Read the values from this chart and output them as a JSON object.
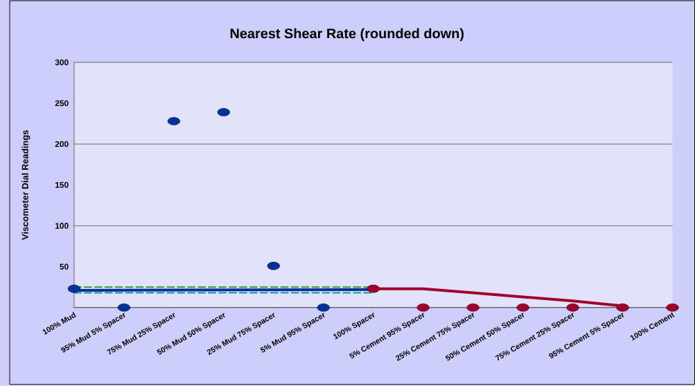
{
  "chart_data": {
    "type": "line",
    "title": "Nearest Shear Rate (rounded down)",
    "ylabel": "Viscometer Dial Readings",
    "categories": [
      "100% Mud",
      "95% Mud  5% Spacer",
      "75% Mud  25% Spacer",
      "50% Mud  50% Spacer",
      "25% Mud  75% Spacer",
      "5% Mud  95% Spacer",
      "100% Spacer",
      "5% Cement  95% Spacer",
      "25% Cement  75% Spacer",
      "50% Cement  50% Spacer",
      "75% Cement  25% Spacer",
      "95% Cement  5% Spacer",
      "100% Cement"
    ],
    "series": [
      {
        "type": "scatter",
        "color": "#003399",
        "marker": "circle",
        "values": [
          23,
          0,
          228,
          239,
          51,
          0,
          null,
          null,
          null,
          null,
          null,
          null,
          null
        ]
      },
      {
        "type": "scatter",
        "color": "#a0002a",
        "marker": "circle",
        "values": [
          null,
          null,
          null,
          null,
          null,
          null,
          23,
          0,
          0,
          0,
          0,
          0,
          0
        ]
      },
      {
        "color": "#339933",
        "line_style": "dashed",
        "marker": "none",
        "values": [
          25,
          null,
          null,
          null,
          null,
          null,
          25,
          null,
          null,
          null,
          null,
          null,
          null
        ]
      },
      {
        "color": "#003399",
        "line_style": "solid",
        "marker": "none",
        "values": [
          21,
          null,
          null,
          null,
          null,
          null,
          22,
          null,
          null,
          null,
          null,
          null,
          null
        ]
      },
      {
        "color": "#009999",
        "line_style": "dashed",
        "marker": "none",
        "values": [
          18,
          null,
          null,
          null,
          null,
          null,
          18,
          null,
          null,
          null,
          null,
          null,
          null
        ]
      },
      {
        "color": "#a0002a",
        "line_style": "solid",
        "marker": "none",
        "values": [
          null,
          null,
          null,
          null,
          null,
          null,
          23,
          23,
          18,
          13,
          8,
          2,
          null
        ]
      }
    ],
    "ylim": [
      0,
      300
    ],
    "yticks": [
      {
        "value": 0,
        "label": null
      },
      50,
      100,
      150,
      200,
      250,
      300
    ],
    "grid": "y"
  }
}
